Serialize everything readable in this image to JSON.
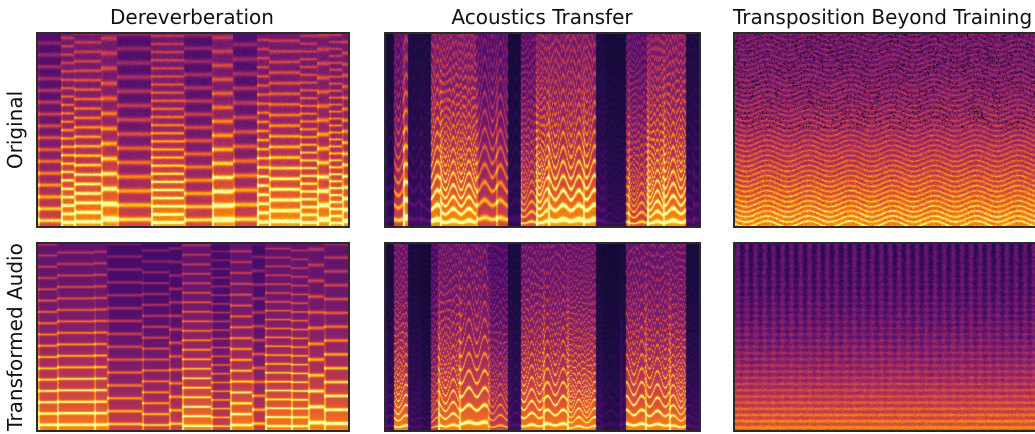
{
  "columns": [
    {
      "title": "Dereverberation"
    },
    {
      "title": "Acoustics Transfer"
    },
    {
      "title": "Transposition Beyond Training"
    }
  ],
  "rows": [
    {
      "label": "Original"
    },
    {
      "label": "Transformed Audio"
    }
  ],
  "colors": {
    "colormap": [
      "#000004",
      "#1b0c41",
      "#4a0c6b",
      "#781c6d",
      "#a52c60",
      "#cf4446",
      "#ed6925",
      "#fb9b06",
      "#f7d13d",
      "#fcffa4"
    ],
    "panel_border": "#2b2b2b"
  }
}
